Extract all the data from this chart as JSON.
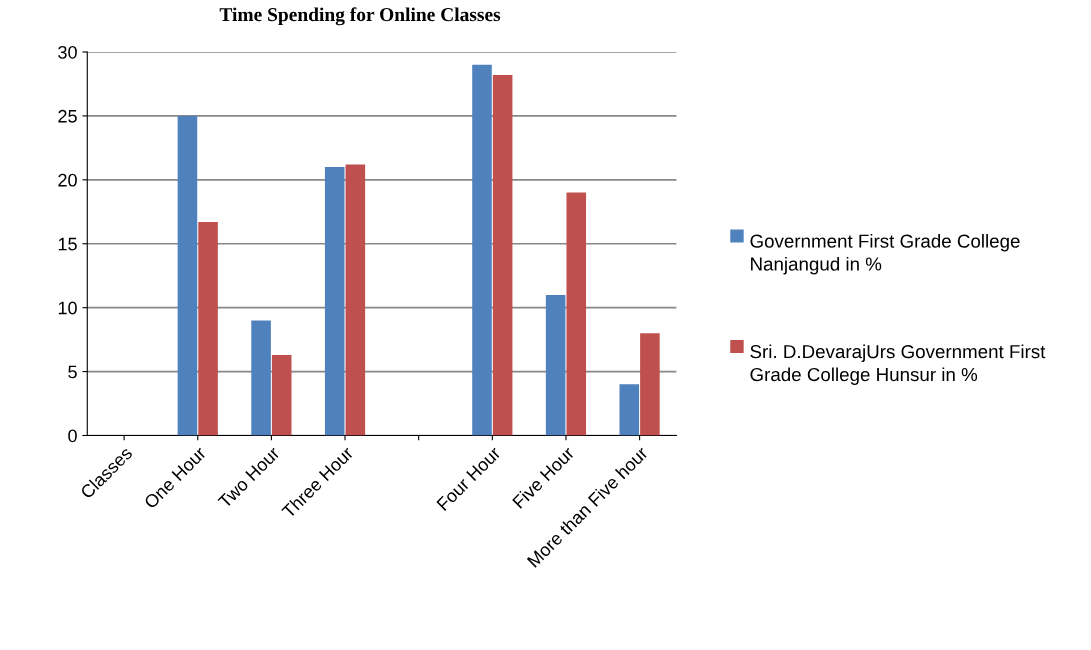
{
  "chart_data": {
    "type": "bar",
    "title": "Time Spending for Online Classes",
    "categories": [
      "Classes",
      "One Hour",
      "Two Hour",
      "Three Hour",
      null,
      "Four Hour",
      "Five Hour",
      "More than Five hour"
    ],
    "series": [
      {
        "name": "Government First Grade College Nanjangud in %",
        "color": "#4f81bd",
        "values": [
          null,
          25,
          9,
          21,
          null,
          29,
          11,
          4
        ]
      },
      {
        "name": "Sri. D.DevarajUrs Government First Grade College Hunsur in %",
        "color": "#c0504d",
        "values": [
          null,
          16.7,
          6.3,
          21.2,
          null,
          28.2,
          19,
          8
        ]
      }
    ],
    "ylim": [
      0,
      30
    ],
    "yticks": [
      0,
      5,
      10,
      15,
      20,
      25,
      30
    ],
    "grid": "y",
    "legend": "right"
  }
}
